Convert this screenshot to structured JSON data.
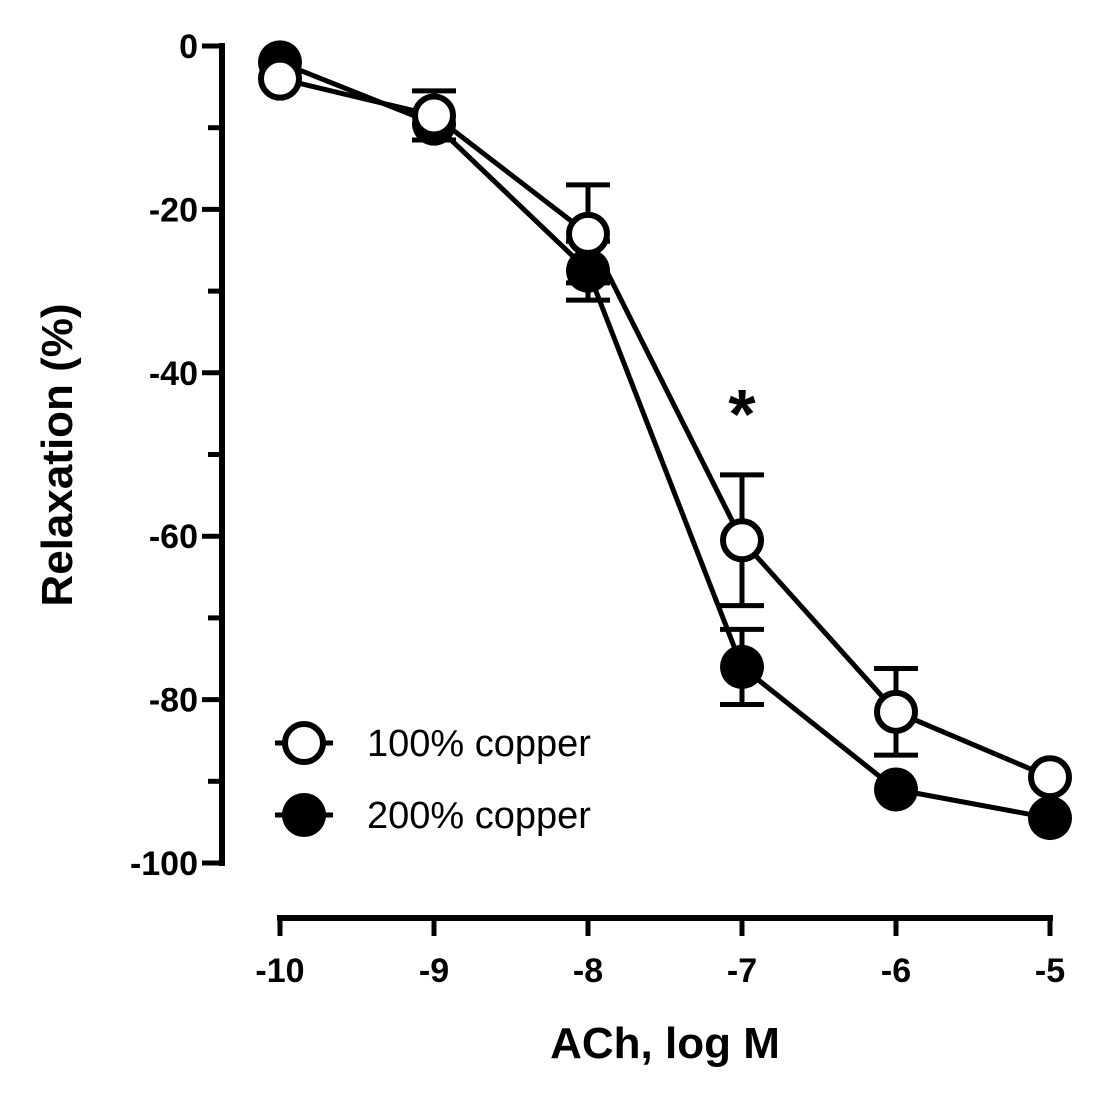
{
  "chart_data": {
    "type": "line",
    "title": "",
    "xlabel": "ACh, log M",
    "ylabel": "Relaxation (%)",
    "x": [
      -10,
      -9,
      -8,
      -7,
      -6,
      -5
    ],
    "x_tick_labels": [
      "-10",
      "-9",
      "-8",
      "-7",
      "-6",
      "-5"
    ],
    "y_tick_labels": [
      "0",
      "-20",
      "-40",
      "-60",
      "-80",
      "-100"
    ],
    "y_ticks": [
      0,
      -20,
      -40,
      -60,
      -80,
      -100
    ],
    "xlim": [
      -10,
      -5
    ],
    "ylim": [
      -100,
      0
    ],
    "grid": false,
    "legend_position": "lower left",
    "series": [
      {
        "name": "100% copper",
        "marker": "open-circle",
        "values": [
          -4,
          -8.5,
          -23,
          -60.5,
          -81.5,
          -89.5
        ],
        "error": [
          0,
          3,
          6,
          8,
          5.3,
          0
        ]
      },
      {
        "name": "200% copper",
        "marker": "filled-circle",
        "values": [
          -2,
          -9.5,
          -27.5,
          -76,
          -91,
          -94.5
        ],
        "error": [
          0,
          0,
          3.6,
          4.6,
          0,
          0
        ]
      }
    ],
    "annotations": [
      {
        "text": "*",
        "x": -7,
        "y": -42,
        "meaning": "significant difference"
      }
    ]
  },
  "colors": {
    "line": "#000000",
    "open_fill": "#ffffff",
    "filled_fill": "#000000"
  }
}
